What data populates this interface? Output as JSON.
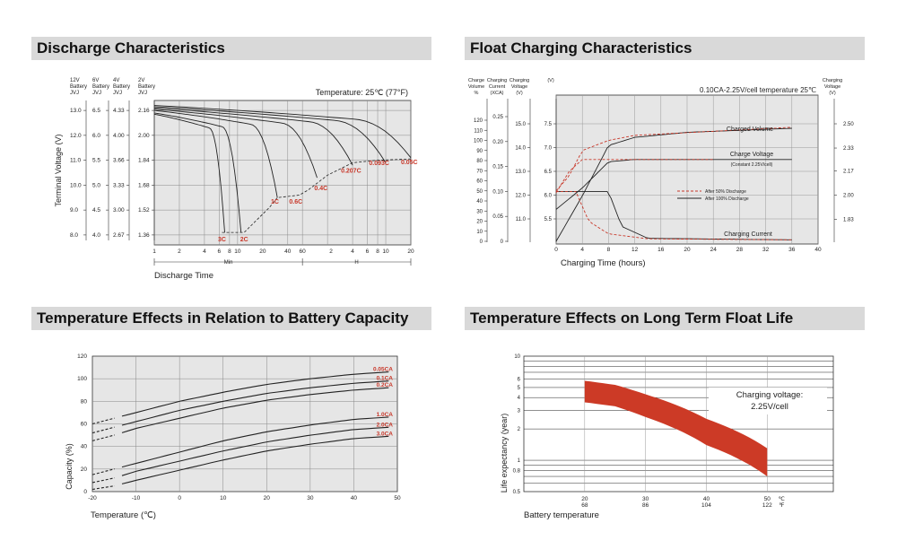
{
  "panels": {
    "discharge": {
      "title": "Discharge Characteristics"
    },
    "float": {
      "title": "Float Charging Characteristics"
    },
    "temp_capacity": {
      "title": "Temperature Effects in Relation to Battery Capacity"
    },
    "float_life": {
      "title": "Temperature Effects on Long Term Float Life"
    }
  },
  "chart_data": [
    {
      "id": "discharge",
      "type": "line",
      "ylabel": "Terminal Voltage (V)",
      "xlabel": "Discharge Time",
      "annotation": "Temperature: 25℃ (77°F)",
      "voltage_axes": [
        {
          "header": [
            "12V",
            "Battery",
            "JVJ"
          ],
          "ticks": [
            "13.0",
            "12.0",
            "11.0",
            "10.0",
            "9.0",
            "8.0"
          ]
        },
        {
          "header": [
            "6V",
            "Battery",
            "JVJ"
          ],
          "ticks": [
            "6.5",
            "6.0",
            "5.5",
            "5.0",
            "4.5",
            "4.0"
          ]
        },
        {
          "header": [
            "4V",
            "Battery",
            "JVJ"
          ],
          "ticks": [
            "4.33",
            "4.00",
            "3.66",
            "3.33",
            "3.00",
            "2.67"
          ]
        },
        {
          "header": [
            "2V",
            "Battery",
            "JVJ"
          ],
          "ticks": [
            "2.16",
            "2.00",
            "1.84",
            "1.68",
            "1.52",
            "1.36"
          ]
        }
      ],
      "ylim": [
        7.6,
        13.4
      ],
      "x_ticks_min": [
        "1",
        "2",
        "4",
        "6",
        "8",
        "10",
        "20",
        "40",
        "60"
      ],
      "x_ticks_h": [
        "2",
        "4",
        "6",
        "8",
        "10",
        "20"
      ],
      "x_unit_min": "Min",
      "x_unit_h": "H",
      "series": [
        {
          "name": "3C",
          "end_minutes": 7,
          "end_voltage": 8.1
        },
        {
          "name": "2C",
          "end_minutes": 11,
          "end_voltage": 8.1
        },
        {
          "name": "1C",
          "end_minutes": 30,
          "end_voltage": 9.5
        },
        {
          "name": "0.4C",
          "end_minutes": 90,
          "end_voltage": 10.3
        },
        {
          "name": "0.207C",
          "end_minutes": 240,
          "end_voltage": 10.8
        },
        {
          "name": "0.093C",
          "end_minutes": 600,
          "end_voltage": 10.9
        },
        {
          "name": "0.05C",
          "end_minutes": 1200,
          "end_voltage": 11.1
        }
      ],
      "cutoff_labels": [
        "3C",
        "2C",
        "1C",
        "0.6C",
        "0.4C",
        "0.207C",
        "0.093C",
        "0.05C"
      ]
    },
    {
      "id": "float",
      "type": "line",
      "header_note": "0.10CA-2.25V/cell  temperature 25℃",
      "xlabel": "Charging Time (hours)",
      "x_ticks": [
        "0",
        "4",
        "8",
        "12",
        "16",
        "20",
        "24",
        "28",
        "32",
        "36",
        "40"
      ],
      "xlim": [
        0,
        40
      ],
      "axes": [
        {
          "header": [
            "Charge",
            "Volume",
            "%"
          ],
          "ticks": [
            "120",
            "110",
            "100",
            "90",
            "80",
            "70",
            "60",
            "50",
            "40",
            "30",
            "20",
            "10",
            "0"
          ]
        },
        {
          "header": [
            "Charging",
            "Current",
            "(XCA)"
          ],
          "ticks": [
            "0.25",
            "0.20",
            "0.15",
            "0.10",
            "0.05",
            "0"
          ]
        },
        {
          "header": [
            "Charging",
            "Voltage",
            "(V)"
          ],
          "ticks": [
            "15.0",
            "14.0",
            "13.0",
            "12.0",
            "11.0"
          ]
        },
        {
          "header": [
            "(V)"
          ],
          "ticks": [
            "7.5",
            "7.0",
            "6.5",
            "6.0",
            "5.5"
          ]
        },
        {
          "header": [
            "Charging",
            "Voltage",
            "(V)"
          ],
          "ticks": [
            "2.50",
            "2.33",
            "2.17",
            "2.00",
            "1.83"
          ]
        }
      ],
      "curve_labels": [
        "Charged Volume",
        "Charge Voltage",
        "(Constant 2.25V/cell)",
        "Charging Current"
      ],
      "legend": [
        {
          "label": "After   50% Discharge",
          "style": "dashed",
          "color": "#c8382a"
        },
        {
          "label": "After 100% Discharge",
          "style": "solid",
          "color": "#222222"
        }
      ],
      "series": [
        {
          "name": "Charged Volume (after 100% discharge)",
          "x": [
            0,
            4,
            8,
            12,
            20,
            36
          ],
          "y": [
            0,
            45,
            95,
            103,
            108,
            112
          ],
          "unit": "%"
        },
        {
          "name": "Charged Volume (after 50% discharge)",
          "x": [
            0,
            2,
            4,
            8,
            12,
            36
          ],
          "y": [
            50,
            65,
            90,
            100,
            105,
            113
          ],
          "unit": "%"
        },
        {
          "name": "Charge Voltage (after 100% discharge)",
          "x": [
            0,
            4,
            8,
            12,
            36
          ],
          "y": [
            11.4,
            12.3,
            13.4,
            13.5,
            13.5
          ],
          "unit": "V"
        },
        {
          "name": "Charge Voltage (after 50% discharge)",
          "x": [
            0,
            2,
            4,
            8,
            24
          ],
          "y": [
            12.1,
            13.0,
            13.5,
            13.5,
            13.5
          ],
          "unit": "V"
        },
        {
          "name": "Charging Current (after 100% discharge)",
          "x": [
            0,
            8,
            10,
            14,
            36
          ],
          "y": [
            0.1,
            0.1,
            0.03,
            0.006,
            0.003
          ],
          "unit": "CA"
        },
        {
          "name": "Charging Current (after 50% discharge)",
          "x": [
            0,
            3,
            5,
            8,
            14,
            36
          ],
          "y": [
            0.1,
            0.1,
            0.04,
            0.015,
            0.005,
            0.003
          ],
          "unit": "CA"
        }
      ]
    },
    {
      "id": "temp_capacity",
      "type": "line",
      "ylabel": "Capacity (%)",
      "xlabel": "Temperature (℃)",
      "x_ticks": [
        "-20",
        "-10",
        "0",
        "10",
        "20",
        "30",
        "40",
        "50"
      ],
      "y_ticks": [
        "0",
        "20",
        "40",
        "60",
        "80",
        "100",
        "120"
      ],
      "xlim": [
        -20,
        50
      ],
      "ylim": [
        0,
        120
      ],
      "series": [
        {
          "name": "0.05CA",
          "x": [
            -20,
            -15,
            -10,
            0,
            10,
            20,
            30,
            40,
            48
          ],
          "y": [
            60,
            65,
            70,
            80,
            88,
            95,
            100,
            104,
            106
          ]
        },
        {
          "name": "0.1CA",
          "x": [
            -20,
            -15,
            -10,
            0,
            10,
            20,
            30,
            40,
            48
          ],
          "y": [
            52,
            57,
            62,
            72,
            80,
            87,
            92,
            96,
            98
          ]
        },
        {
          "name": "0.2CA",
          "x": [
            -20,
            -15,
            -10,
            0,
            10,
            20,
            30,
            40,
            48
          ],
          "y": [
            45,
            50,
            56,
            65,
            74,
            81,
            86,
            90,
            92
          ]
        },
        {
          "name": "1.0CA",
          "x": [
            -20,
            -15,
            -10,
            0,
            10,
            20,
            30,
            40,
            48
          ],
          "y": [
            15,
            20,
            25,
            35,
            45,
            53,
            59,
            64,
            66
          ]
        },
        {
          "name": "2.0CA",
          "x": [
            -20,
            -15,
            -10,
            0,
            10,
            20,
            30,
            40,
            48
          ],
          "y": [
            8,
            12,
            18,
            27,
            36,
            44,
            50,
            55,
            57
          ]
        },
        {
          "name": "3.0CA",
          "x": [
            -20,
            -15,
            -10,
            0,
            10,
            20,
            30,
            40,
            48
          ],
          "y": [
            2,
            5,
            10,
            19,
            28,
            36,
            42,
            47,
            49
          ]
        }
      ]
    },
    {
      "id": "float_life",
      "type": "area",
      "ylabel": "Life expectancy (year)",
      "xlabel": "Battery temperature",
      "x_ticks_c": [
        "20",
        "30",
        "40",
        "50"
      ],
      "x_ticks_f": [
        "68",
        "86",
        "104",
        "122"
      ],
      "x_unit_c": "℃",
      "x_unit_f": "℉",
      "y_ticks": [
        "10",
        "6",
        "5",
        "4",
        "3",
        "2",
        "1",
        "0.8",
        "0.5"
      ],
      "log_scale_y": true,
      "xlim": [
        10,
        60
      ],
      "ylim": [
        0.5,
        10
      ],
      "annotation": [
        "Charging voltage:",
        "2.25V/cell"
      ],
      "band_color": "#cc3a26",
      "band": {
        "x": [
          20,
          25,
          30,
          40,
          50
        ],
        "upper": [
          5.8,
          5.3,
          4.3,
          2.5,
          1.3
        ],
        "lower": [
          3.6,
          3.3,
          2.6,
          1.4,
          0.7
        ]
      }
    }
  ]
}
